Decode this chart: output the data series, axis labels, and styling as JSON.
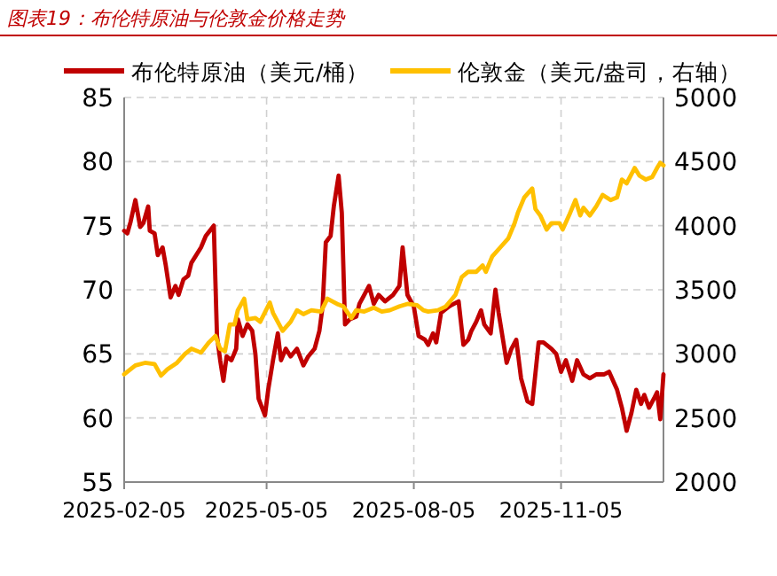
{
  "chart_data": {
    "type": "line",
    "title": "图表19：布伦特原油与伦敦金价格走势",
    "legend": "top",
    "grid": true,
    "xlim": [
      "2025-02-05",
      "2026-01-08"
    ],
    "xticks": [
      {
        "value": "2025-02-05",
        "label": "2025-02-05"
      },
      {
        "value": "2025-05-05",
        "label": "2025-05-05"
      },
      {
        "value": "2025-08-05",
        "label": "2025-08-05"
      },
      {
        "value": "2025-11-05",
        "label": "2025-11-05"
      }
    ],
    "ylim": [
      55,
      85
    ],
    "yticks": [
      55,
      60,
      65,
      70,
      75,
      80,
      85
    ],
    "y2lim": [
      2000,
      5000
    ],
    "y2ticks": [
      2000,
      2500,
      3000,
      3500,
      4000,
      4500,
      5000
    ],
    "series": [
      {
        "name": "布伦特原油（美元/桶）",
        "color": "#c00000",
        "axis": "y",
        "x": [
          "2025-02-05",
          "2025-02-07",
          "2025-02-09",
          "2025-02-12",
          "2025-02-15",
          "2025-02-17",
          "2025-02-20",
          "2025-02-21",
          "2025-02-24",
          "2025-02-26",
          "2025-03-01",
          "2025-03-03",
          "2025-03-06",
          "2025-03-09",
          "2025-03-11",
          "2025-03-14",
          "2025-03-17",
          "2025-03-19",
          "2025-03-25",
          "2025-03-28",
          "2025-04-02",
          "2025-04-04",
          "2025-04-06",
          "2025-04-08",
          "2025-04-10",
          "2025-04-13",
          "2025-04-16",
          "2025-04-17",
          "2025-04-20",
          "2025-04-23",
          "2025-04-26",
          "2025-04-28",
          "2025-04-30",
          "2025-05-04",
          "2025-05-06",
          "2025-05-09",
          "2025-05-12",
          "2025-05-14",
          "2025-05-17",
          "2025-05-20",
          "2025-05-24",
          "2025-05-28",
          "2025-05-31",
          "2025-06-04",
          "2025-06-07",
          "2025-06-09",
          "2025-06-11",
          "2025-06-14",
          "2025-06-16",
          "2025-06-19",
          "2025-06-21",
          "2025-06-23",
          "2025-06-26",
          "2025-06-30",
          "2025-07-02",
          "2025-07-05",
          "2025-07-08",
          "2025-07-11",
          "2025-07-14",
          "2025-07-18",
          "2025-07-23",
          "2025-07-27",
          "2025-07-29",
          "2025-08-01",
          "2025-08-05",
          "2025-08-08",
          "2025-08-12",
          "2025-08-14",
          "2025-08-17",
          "2025-08-19",
          "2025-08-22",
          "2025-08-24",
          "2025-08-27",
          "2025-08-30",
          "2025-09-02",
          "2025-09-05",
          "2025-09-08",
          "2025-09-10",
          "2025-09-13",
          "2025-09-16",
          "2025-09-18",
          "2025-09-22",
          "2025-09-25",
          "2025-09-27",
          "2025-09-30",
          "2025-10-02",
          "2025-10-05",
          "2025-10-08",
          "2025-10-11",
          "2025-10-15",
          "2025-10-18",
          "2025-10-22",
          "2025-10-25",
          "2025-10-30",
          "2025-11-02",
          "2025-11-05",
          "2025-11-08",
          "2025-11-12",
          "2025-11-15",
          "2025-11-19",
          "2025-11-23",
          "2025-11-27",
          "2025-12-02",
          "2025-12-05",
          "2025-12-10",
          "2025-12-13",
          "2025-12-16",
          "2025-12-19",
          "2025-12-22",
          "2025-12-25",
          "2025-12-27",
          "2025-12-30",
          "2026-01-02",
          "2026-01-04",
          "2026-01-06",
          "2026-01-08"
        ],
        "values": [
          74.6,
          74.4,
          75.3,
          77.0,
          74.9,
          75.2,
          76.5,
          74.6,
          74.4,
          72.7,
          73.3,
          71.9,
          69.4,
          70.3,
          69.6,
          70.8,
          71.1,
          72.1,
          73.3,
          74.2,
          75.0,
          66.4,
          64.5,
          62.9,
          64.8,
          64.5,
          65.4,
          67.7,
          66.4,
          67.3,
          66.8,
          65.0,
          61.5,
          60.2,
          62.2,
          64.5,
          66.6,
          64.5,
          65.4,
          64.8,
          65.4,
          64.1,
          64.8,
          65.4,
          66.8,
          68.7,
          73.7,
          74.2,
          76.5,
          78.9,
          76.0,
          67.3,
          67.7,
          67.9,
          68.9,
          69.6,
          70.3,
          68.9,
          69.6,
          69.1,
          69.6,
          70.3,
          73.3,
          69.6,
          68.7,
          66.4,
          66.1,
          65.7,
          66.6,
          65.9,
          68.2,
          68.4,
          68.7,
          68.9,
          69.1,
          65.7,
          66.1,
          66.8,
          67.5,
          68.4,
          67.3,
          66.6,
          70.0,
          68.2,
          65.9,
          64.3,
          65.4,
          66.1,
          63.1,
          61.3,
          61.1,
          65.9,
          65.9,
          65.4,
          65.0,
          63.6,
          64.5,
          62.9,
          64.5,
          63.4,
          63.1,
          63.4,
          63.4,
          63.6,
          62.2,
          60.8,
          59.0,
          60.4,
          62.2,
          61.1,
          61.8,
          60.8,
          61.5,
          62.0,
          59.9,
          63.4
        ]
      },
      {
        "name": "伦敦金（美元/盎司，右轴）",
        "color": "#ffc000",
        "axis": "y2",
        "x": [
          "2025-02-05",
          "2025-02-09",
          "2025-02-12",
          "2025-02-18",
          "2025-02-24",
          "2025-02-28",
          "2025-03-04",
          "2025-03-10",
          "2025-03-15",
          "2025-03-19",
          "2025-03-25",
          "2025-03-30",
          "2025-04-03",
          "2025-04-06",
          "2025-04-09",
          "2025-04-12",
          "2025-04-15",
          "2025-04-17",
          "2025-04-21",
          "2025-04-23",
          "2025-04-28",
          "2025-05-01",
          "2025-05-07",
          "2025-05-09",
          "2025-05-15",
          "2025-05-20",
          "2025-05-24",
          "2025-05-28",
          "2025-06-02",
          "2025-06-08",
          "2025-06-12",
          "2025-06-18",
          "2025-06-22",
          "2025-06-27",
          "2025-06-30",
          "2025-07-05",
          "2025-07-11",
          "2025-07-16",
          "2025-07-21",
          "2025-07-27",
          "2025-08-01",
          "2025-08-07",
          "2025-08-11",
          "2025-08-14",
          "2025-08-20",
          "2025-08-25",
          "2025-08-31",
          "2025-09-04",
          "2025-09-08",
          "2025-09-13",
          "2025-09-17",
          "2025-09-19",
          "2025-09-23",
          "2025-09-28",
          "2025-10-03",
          "2025-10-07",
          "2025-10-09",
          "2025-10-13",
          "2025-10-18",
          "2025-10-20",
          "2025-10-23",
          "2025-10-27",
          "2025-10-30",
          "2025-11-04",
          "2025-11-06",
          "2025-11-10",
          "2025-11-14",
          "2025-11-17",
          "2025-11-19",
          "2025-11-23",
          "2025-11-27",
          "2025-12-01",
          "2025-12-06",
          "2025-12-10",
          "2025-12-13",
          "2025-12-16",
          "2025-12-21",
          "2025-12-24",
          "2025-12-28",
          "2026-01-01",
          "2026-01-04",
          "2026-01-06",
          "2026-01-08"
        ],
        "values": [
          2840,
          2880,
          2910,
          2930,
          2920,
          2830,
          2880,
          2930,
          3000,
          3040,
          3010,
          3090,
          3140,
          3040,
          3020,
          3230,
          3230,
          3340,
          3430,
          3270,
          3280,
          3250,
          3400,
          3320,
          3180,
          3250,
          3340,
          3310,
          3340,
          3330,
          3430,
          3390,
          3370,
          3280,
          3340,
          3330,
          3360,
          3330,
          3340,
          3370,
          3390,
          3380,
          3340,
          3330,
          3340,
          3370,
          3460,
          3600,
          3640,
          3640,
          3690,
          3640,
          3760,
          3830,
          3900,
          4020,
          4100,
          4220,
          4290,
          4130,
          4080,
          3970,
          4020,
          4020,
          3970,
          4080,
          4200,
          4080,
          4140,
          4080,
          4150,
          4240,
          4200,
          4220,
          4360,
          4330,
          4450,
          4390,
          4360,
          4380,
          4450,
          4490,
          4470
        ]
      }
    ]
  }
}
